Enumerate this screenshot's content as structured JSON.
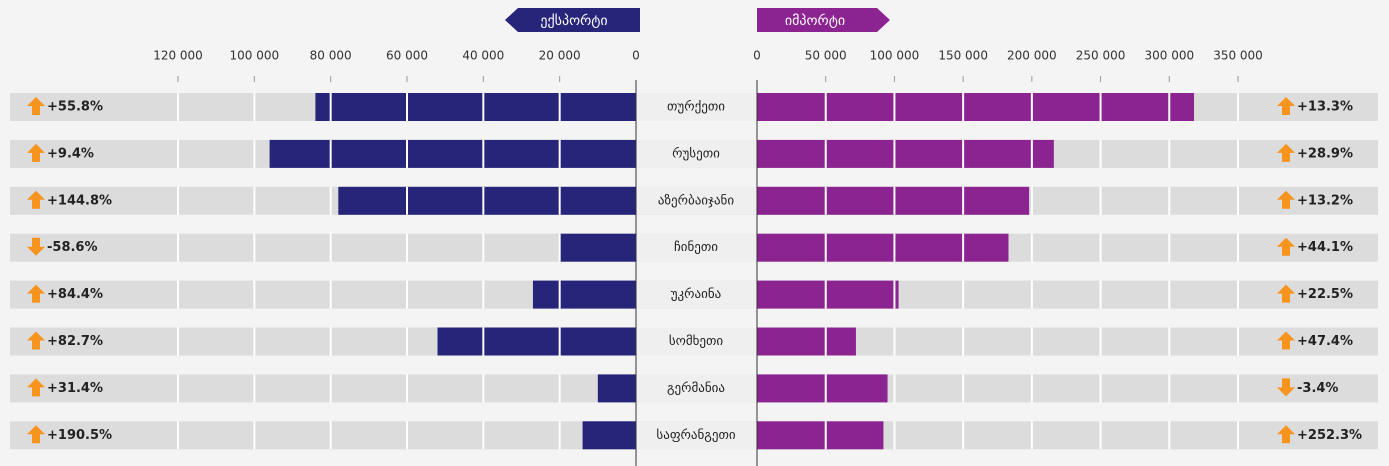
{
  "chart_data": {
    "type": "butterfly-bar",
    "categories": [
      "თურქეთი",
      "რუსეთი",
      "აზერბაიჯანი",
      "ჩინეთი",
      "უკრაინა",
      "სომხეთი",
      "გერმანია",
      "საფრანგეთი"
    ],
    "series": [
      {
        "name": "ექსპორტი",
        "color": "#26257a",
        "axis": "x",
        "values": [
          84000,
          96000,
          78000,
          20000,
          27000,
          52000,
          10000,
          14000
        ],
        "change": [
          55.8,
          9.4,
          144.8,
          -58.6,
          84.4,
          82.7,
          31.4,
          190.5
        ],
        "change_labels": [
          "+55.8%",
          "+9.4%",
          "+144.8%",
          "-58.6%",
          "+84.4%",
          "+82.7%",
          "+31.4%",
          "+190.5%"
        ]
      },
      {
        "name": "იმპორტი",
        "color": "#8b2490",
        "axis": "x2",
        "values": [
          318000,
          216000,
          198000,
          183000,
          103000,
          72000,
          95000,
          92000
        ],
        "change": [
          13.3,
          28.9,
          13.2,
          44.1,
          22.5,
          47.4,
          -3.4,
          252.3
        ],
        "change_labels": [
          "+13.3%",
          "+28.9%",
          "+13.2%",
          "+44.1%",
          "+22.5%",
          "+47.4%",
          "-3.4%",
          "+252.3%"
        ]
      }
    ],
    "xlim": [
      0,
      120000
    ],
    "xticks": [
      {
        "value": 120000,
        "label": "120 000"
      },
      {
        "value": 100000,
        "label": "100 000"
      },
      {
        "value": 80000,
        "label": "80 000"
      },
      {
        "value": 60000,
        "label": "60 000"
      },
      {
        "value": 40000,
        "label": "40 000"
      },
      {
        "value": 20000,
        "label": "20 000"
      },
      0
    ],
    "x2lim": [
      0,
      350000
    ],
    "x2ticks": [
      0,
      {
        "value": 50000,
        "label": "50 000"
      },
      {
        "value": 100000,
        "label": "100 000"
      },
      {
        "value": 150000,
        "label": "150 000"
      },
      {
        "value": 200000,
        "label": "200 000"
      },
      {
        "value": 250000,
        "label": "250 000"
      },
      {
        "value": 300000,
        "label": "300 000"
      },
      {
        "value": 350000,
        "label": "350 000"
      }
    ],
    "grid": true,
    "up_color": "#f7941d",
    "down_color": "#f7941d"
  }
}
